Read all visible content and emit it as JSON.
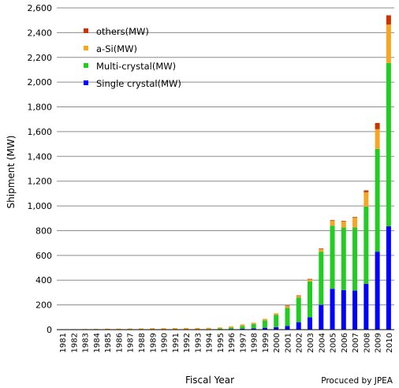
{
  "chart_data": {
    "type": "bar",
    "stacked": true,
    "xlabel": "Fiscal Year",
    "ylabel": "Shipment (MW)",
    "ylim": [
      0,
      2600
    ],
    "yticks": [
      0,
      200,
      400,
      600,
      800,
      1000,
      1200,
      1400,
      1600,
      1800,
      2000,
      2200,
      2400,
      2600
    ],
    "ytick_labels": [
      "0",
      "200",
      "400",
      "600",
      "800",
      "1,000",
      "1,200",
      "1,400",
      "1,600",
      "1,800",
      "2,000",
      "2,200",
      "2,400",
      "2,600"
    ],
    "grid": "horizontal",
    "legend_position": "top-left",
    "categories": [
      "1981",
      "1982",
      "1983",
      "1984",
      "1985",
      "1986",
      "1987",
      "1988",
      "1989",
      "1990",
      "1991",
      "1992",
      "1993",
      "1994",
      "1995",
      "1996",
      "1997",
      "1998",
      "1999",
      "2000",
      "2001",
      "2002",
      "2003",
      "2004",
      "2005",
      "2006",
      "2007",
      "2008",
      "2009",
      "2010"
    ],
    "series": [
      {
        "name": "Single crystal(MW)",
        "color": "#0000ff",
        "values": [
          0,
          0,
          0,
          0,
          0,
          0,
          0,
          0,
          0,
          0,
          0,
          0,
          1,
          2,
          3,
          5,
          8,
          10,
          15,
          20,
          30,
          60,
          100,
          200,
          330,
          320,
          315,
          370,
          630,
          835
        ]
      },
      {
        "name": "Multi-crystal(MW)",
        "color": "#22cc22",
        "values": [
          0,
          0,
          0,
          0,
          0,
          0,
          0,
          0,
          0,
          0,
          0,
          1,
          2,
          3,
          6,
          12,
          22,
          36,
          60,
          100,
          145,
          200,
          290,
          430,
          510,
          505,
          510,
          625,
          830,
          1320
        ]
      },
      {
        "name": "a-Si(MW)",
        "color": "#f5a623",
        "values": [
          3,
          4,
          5,
          6,
          8,
          8,
          9,
          10,
          12,
          12,
          13,
          13,
          11,
          10,
          9,
          10,
          12,
          10,
          12,
          12,
          15,
          12,
          15,
          20,
          40,
          50,
          80,
          115,
          160,
          310
        ]
      },
      {
        "name": "others(MW)",
        "color": "#cc3300",
        "values": [
          0,
          0,
          0,
          0,
          0,
          0,
          0,
          0,
          0,
          0,
          0,
          0,
          0,
          0,
          0,
          0,
          0,
          0,
          0,
          0,
          5,
          5,
          5,
          5,
          5,
          5,
          5,
          15,
          50,
          75
        ]
      }
    ],
    "credit": "Procuced by  JPEA"
  }
}
